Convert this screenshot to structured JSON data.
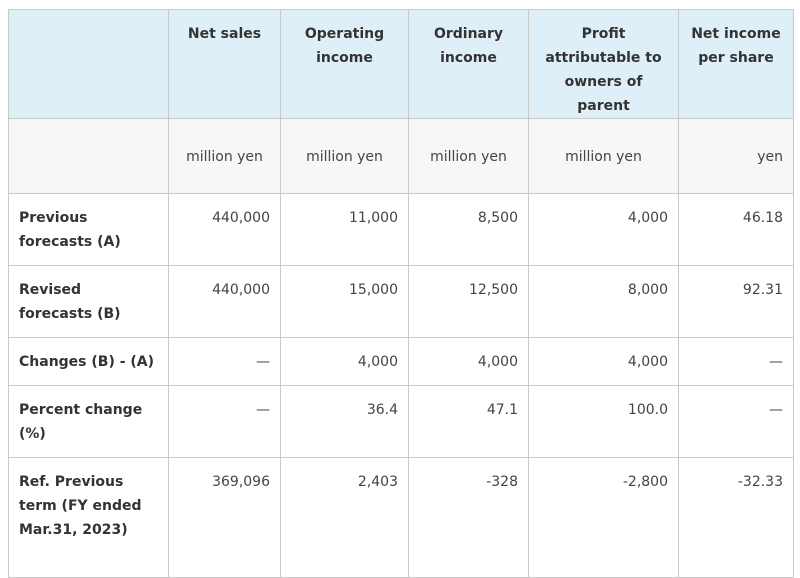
{
  "headers": {
    "blank": "",
    "net_sales": "Net sales",
    "operating_income": "Operating income",
    "ordinary_income": "Ordinary income",
    "profit_owners": "Profit attributable to owners of parent",
    "net_income_per_share": "Net income per share"
  },
  "units": {
    "blank": "",
    "net_sales": "million yen",
    "operating_income": "million yen",
    "ordinary_income": "million yen",
    "profit_owners": "million yen",
    "net_income_per_share": "yen"
  },
  "rows": [
    {
      "label": "Previous forecasts (A)",
      "net_sales": "440,000",
      "operating_income": "11,000",
      "ordinary_income": "8,500",
      "profit_owners": "4,000",
      "net_income_per_share": "46.18"
    },
    {
      "label": "Revised forecasts (B)",
      "net_sales": "440,000",
      "operating_income": "15,000",
      "ordinary_income": "12,500",
      "profit_owners": "8,000",
      "net_income_per_share": "92.31"
    },
    {
      "label": "Changes (B) - (A)",
      "net_sales": "—",
      "operating_income": "4,000",
      "ordinary_income": "4,000",
      "profit_owners": "4,000",
      "net_income_per_share": "—"
    },
    {
      "label": "Percent change (%)",
      "net_sales": "—",
      "operating_income": "36.4",
      "ordinary_income": "47.1",
      "profit_owners": "100.0",
      "net_income_per_share": "—"
    },
    {
      "label": "Ref. Previous term (FY ended Mar.31, 2023)",
      "net_sales": "369,096",
      "operating_income": "2,403",
      "ordinary_income": "-328",
      "profit_owners": "-2,800",
      "net_income_per_share": "-32.33"
    }
  ]
}
